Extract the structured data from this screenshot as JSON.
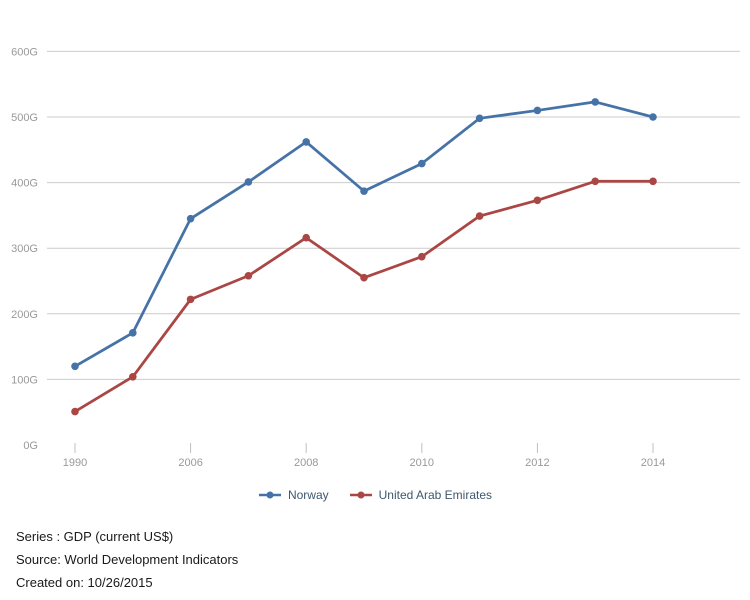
{
  "chart_data": {
    "type": "line",
    "title": "",
    "xlabel": "",
    "ylabel": "",
    "x_axis": {
      "categories": [
        "1990",
        "2000",
        "2006",
        "2007",
        "2008",
        "2009",
        "2010",
        "2011",
        "2012",
        "2013",
        "2014"
      ],
      "visible_tick_labels": [
        "1990",
        "2006",
        "2008",
        "2010",
        "2012",
        "2014"
      ],
      "visible_tick_indices": [
        0,
        2,
        4,
        6,
        8,
        10
      ]
    },
    "y_axis": {
      "unit_suffix": "G",
      "range": [
        0,
        650
      ],
      "ticks": [
        {
          "value": 0,
          "label": "0G"
        },
        {
          "value": 100,
          "label": "100G"
        },
        {
          "value": 200,
          "label": "200G"
        },
        {
          "value": 300,
          "label": "300G"
        },
        {
          "value": 400,
          "label": "400G"
        },
        {
          "value": 500,
          "label": "500G"
        },
        {
          "value": 600,
          "label": "600G"
        }
      ]
    },
    "series": [
      {
        "name": "Norway",
        "color": "#4572a7",
        "values": [
          120,
          171,
          345,
          401,
          462,
          387,
          429,
          498,
          510,
          523,
          500
        ]
      },
      {
        "name": "United Arab Emirates",
        "color": "#aa4643",
        "values": [
          51,
          104,
          222,
          258,
          316,
          255,
          287,
          349,
          373,
          402,
          402
        ]
      }
    ],
    "grid": "horizontal-only",
    "legend_position": "bottom-center"
  },
  "footer": {
    "series_line": "Series : GDP (current US$)",
    "source_line": "Source: World Development Indicators",
    "created_line": "Created on: 10/26/2015"
  },
  "colors": {
    "background": "#ffffff",
    "gridline": "#cccccc",
    "axis_tick": "#c0c0c0",
    "axis_label_text": "#999999",
    "legend_text": "#3e576f",
    "footer_text": "#1a1a1a"
  }
}
